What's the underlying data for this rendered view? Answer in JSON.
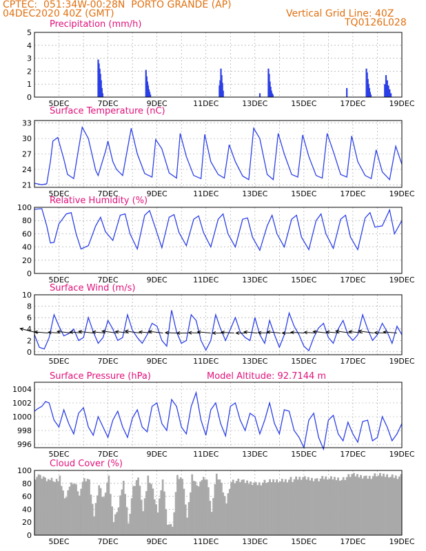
{
  "header": {
    "line1": "CPTEC:  051:34W-00:28N  PORTO GRANDE (AP)",
    "line2": "04DEC2020 40Z (GMT)",
    "grid_note": "Vertical Grid Line: 40Z",
    "code": "TQ0126L028"
  },
  "colors": {
    "header": "#e07010",
    "title": "#e0107a",
    "line": "#2b3fe6",
    "cloud": "#a9a9a9",
    "grid": "#9a9a9a"
  },
  "x_axis_labels": [
    "5DEC",
    "7DEC",
    "9DEC",
    "11DEC",
    "13DEC",
    "15DEC",
    "17DEC",
    "19DEC"
  ],
  "chart_data": [
    {
      "id": "precip",
      "type": "bar",
      "title": "Precipitation (mm/h)",
      "ylim": [
        0,
        5
      ],
      "yticks": [
        0,
        1,
        2,
        3,
        4,
        5
      ],
      "grid": true,
      "day_range": [
        4.0,
        19.0
      ],
      "days": [
        6.6,
        6.63,
        6.66,
        6.69,
        6.72,
        6.75,
        6.78,
        8.55,
        8.58,
        8.61,
        8.64,
        8.67,
        8.7,
        8.73,
        11.55,
        11.58,
        11.61,
        11.64,
        11.67,
        11.7,
        13.55,
        13.58,
        13.61,
        13.64,
        13.67,
        13.7,
        13.73,
        13.2,
        16.75,
        17.55,
        17.58,
        17.61,
        17.64,
        17.67,
        17.7,
        17.73,
        18.3,
        18.35,
        18.4,
        18.45,
        18.5,
        18.55
      ],
      "values": [
        2.9,
        2.6,
        2.2,
        1.8,
        1.3,
        0.7,
        0.3,
        2.1,
        1.6,
        1.2,
        0.9,
        0.6,
        0.4,
        0.2,
        0.9,
        1.3,
        2.2,
        1.7,
        1.1,
        0.5,
        2.2,
        1.8,
        1.2,
        0.8,
        0.5,
        0.3,
        0.2,
        0.3,
        0.7,
        2.2,
        1.9,
        1.4,
        1.0,
        0.7,
        0.4,
        0.2,
        1.0,
        1.7,
        1.3,
        0.9,
        0.6,
        0.3
      ]
    },
    {
      "id": "temp",
      "type": "line",
      "title": "Surface Temperature (nC)",
      "ylim": [
        20.5,
        33.5
      ],
      "yticks": [
        21,
        24,
        27,
        30,
        33
      ],
      "grid": true,
      "day_range": [
        4.0,
        19.0
      ],
      "days": [
        4.0,
        4.3,
        4.5,
        4.65,
        4.75,
        4.95,
        5.2,
        5.35,
        5.6,
        5.8,
        5.95,
        6.2,
        6.5,
        6.6,
        6.9,
        7.0,
        7.2,
        7.35,
        7.6,
        7.95,
        8.2,
        8.5,
        8.8,
        8.95,
        9.2,
        9.5,
        9.8,
        9.95,
        10.2,
        10.5,
        10.8,
        10.95,
        11.2,
        11.5,
        11.75,
        11.95,
        12.2,
        12.5,
        12.75,
        12.95,
        13.2,
        13.5,
        13.75,
        13.95,
        14.2,
        14.5,
        14.75,
        14.95,
        15.2,
        15.5,
        15.75,
        15.95,
        16.2,
        16.5,
        16.75,
        16.95,
        17.2,
        17.5,
        17.75,
        17.95,
        18.2,
        18.5,
        18.75,
        19.0
      ],
      "values": [
        21.3,
        21.0,
        21.2,
        25.5,
        29.5,
        30.2,
        26.0,
        23.0,
        22.2,
        28.0,
        32.2,
        30.0,
        23.8,
        22.8,
        27.5,
        29.5,
        25.5,
        24.0,
        22.8,
        32.0,
        27.0,
        23.2,
        22.5,
        29.8,
        28.0,
        23.3,
        22.3,
        31.0,
        26.5,
        22.8,
        22.2,
        30.8,
        25.5,
        23.0,
        22.3,
        28.8,
        25.5,
        22.7,
        22.0,
        32.0,
        30.0,
        23.0,
        22.0,
        31.0,
        27.0,
        23.0,
        22.5,
        30.7,
        26.5,
        22.8,
        22.3,
        31.0,
        27.5,
        23.0,
        22.5,
        30.5,
        25.5,
        22.8,
        22.2,
        27.8,
        23.5,
        22.0,
        28.5,
        25.0
      ]
    },
    {
      "id": "rh",
      "type": "line",
      "title": "Relative Humidity (%)",
      "ylim": [
        0,
        100
      ],
      "yticks": [
        0,
        20,
        40,
        60,
        80,
        100
      ],
      "grid": true,
      "day_range": [
        4.0,
        19.0
      ],
      "days": [
        4.0,
        4.3,
        4.5,
        4.65,
        4.8,
        5.0,
        5.3,
        5.5,
        5.7,
        5.9,
        6.2,
        6.5,
        6.7,
        6.9,
        7.2,
        7.5,
        7.7,
        7.9,
        8.2,
        8.5,
        8.7,
        8.9,
        9.2,
        9.5,
        9.7,
        9.9,
        10.2,
        10.5,
        10.7,
        10.9,
        11.2,
        11.5,
        11.7,
        11.9,
        12.2,
        12.5,
        12.7,
        12.9,
        13.2,
        13.5,
        13.7,
        13.9,
        14.2,
        14.5,
        14.7,
        14.9,
        15.2,
        15.5,
        15.7,
        15.9,
        16.2,
        16.5,
        16.7,
        16.9,
        17.2,
        17.5,
        17.7,
        17.9,
        18.2,
        18.5,
        18.7,
        19.0
      ],
      "values": [
        97,
        98,
        72,
        46,
        47,
        75,
        90,
        92,
        60,
        37,
        42,
        72,
        85,
        63,
        50,
        88,
        90,
        60,
        37,
        88,
        95,
        73,
        39,
        85,
        89,
        62,
        42,
        82,
        87,
        62,
        40,
        82,
        90,
        60,
        40,
        82,
        84,
        55,
        35,
        72,
        88,
        60,
        40,
        82,
        88,
        55,
        36,
        80,
        90,
        60,
        38,
        82,
        88,
        55,
        36,
        84,
        92,
        70,
        72,
        96,
        60,
        80
      ]
    },
    {
      "id": "wind",
      "type": "line",
      "title": "Surface Wind (m/s)",
      "ylim": [
        -0.5,
        10
      ],
      "yticks": [
        0,
        2,
        4,
        6,
        8,
        10
      ],
      "grid": true,
      "day_range": [
        4.0,
        19.0
      ],
      "days": [
        4.0,
        4.2,
        4.4,
        4.6,
        4.8,
        5.0,
        5.2,
        5.4,
        5.6,
        5.8,
        6.0,
        6.2,
        6.4,
        6.6,
        6.8,
        7.0,
        7.2,
        7.4,
        7.6,
        7.8,
        8.0,
        8.2,
        8.4,
        8.6,
        8.8,
        9.0,
        9.2,
        9.4,
        9.6,
        9.8,
        10.0,
        10.2,
        10.4,
        10.6,
        10.8,
        11.0,
        11.2,
        11.4,
        11.6,
        11.8,
        12.0,
        12.2,
        12.4,
        12.6,
        12.8,
        13.0,
        13.2,
        13.4,
        13.6,
        13.8,
        14.0,
        14.2,
        14.4,
        14.6,
        14.8,
        15.0,
        15.2,
        15.4,
        15.6,
        15.8,
        16.0,
        16.2,
        16.4,
        16.6,
        16.8,
        17.0,
        17.2,
        17.4,
        17.6,
        17.8,
        18.0,
        18.2,
        18.4,
        18.6,
        18.8,
        19.0
      ],
      "values": [
        3.0,
        0.8,
        0.5,
        2.5,
        6.5,
        4.5,
        2.8,
        3.2,
        4.0,
        2.0,
        2.5,
        6.0,
        3.5,
        1.5,
        2.5,
        5.5,
        4.0,
        2.0,
        2.5,
        6.5,
        3.8,
        2.5,
        1.5,
        3.0,
        5.0,
        4.5,
        2.0,
        1.0,
        7.3,
        3.5,
        1.5,
        2.0,
        6.5,
        5.5,
        2.0,
        0.3,
        2.0,
        6.5,
        4.0,
        2.0,
        4.0,
        6.0,
        3.5,
        2.5,
        2.0,
        6.0,
        3.0,
        1.5,
        5.5,
        3.0,
        0.8,
        3.0,
        6.8,
        4.5,
        3.0,
        1.0,
        0.2,
        2.5,
        4.2,
        5.0,
        2.5,
        1.5,
        4.0,
        5.5,
        3.0,
        2.0,
        3.0,
        6.5,
        4.0,
        2.0,
        3.0,
        5.0,
        3.5,
        1.5,
        4.5,
        3.0
      ],
      "arrow_days": [
        4.15,
        4.55,
        5.05,
        5.5,
        5.95,
        6.4,
        6.9,
        7.35,
        7.85,
        8.3,
        8.8,
        9.25,
        9.8,
        10.25,
        10.75,
        11.2,
        11.7,
        12.15,
        12.65,
        13.1,
        13.6,
        14.05,
        14.55,
        15.0,
        15.5,
        15.95,
        16.45,
        16.9,
        17.4,
        17.85,
        18.35,
        18.8
      ],
      "arrow_speeds": [
        4.6,
        3.6,
        3.2,
        3.5,
        3.0,
        3.8,
        3.3,
        3.5,
        3.2,
        3.6,
        3.3,
        3.7,
        3.2,
        3.4,
        3.2,
        3.5,
        3.3,
        3.6,
        3.2,
        3.5,
        3.3,
        3.6,
        3.4,
        3.7,
        3.2,
        3.5,
        3.4,
        3.6,
        3.4,
        3.8,
        3.3,
        3.6
      ],
      "arrow_dirs": [
        90,
        60,
        55,
        65,
        60,
        65,
        60,
        70,
        65,
        70,
        60,
        65,
        50,
        45,
        50,
        60,
        45,
        55,
        45,
        60,
        50,
        60,
        45,
        55,
        55,
        65,
        60,
        70,
        65,
        70,
        50,
        60
      ]
    },
    {
      "id": "press",
      "type": "line",
      "title": "Surface Pressure (hPa)",
      "subtitle": "Model Altitude: 92.7144 m",
      "ylim": [
        995.5,
        1005
      ],
      "yticks": [
        996,
        998,
        1000,
        1002,
        1004
      ],
      "grid": true,
      "day_range": [
        4.0,
        19.0
      ],
      "days": [
        4.0,
        4.15,
        4.3,
        4.45,
        4.6,
        4.8,
        5.0,
        5.2,
        5.4,
        5.6,
        5.8,
        6.0,
        6.2,
        6.4,
        6.6,
        6.8,
        7.0,
        7.2,
        7.4,
        7.6,
        7.8,
        8.0,
        8.2,
        8.4,
        8.6,
        8.8,
        9.0,
        9.2,
        9.4,
        9.6,
        9.8,
        10.0,
        10.2,
        10.4,
        10.6,
        10.8,
        11.0,
        11.2,
        11.4,
        11.6,
        11.8,
        12.0,
        12.2,
        12.4,
        12.6,
        12.8,
        13.0,
        13.2,
        13.4,
        13.6,
        13.8,
        14.0,
        14.2,
        14.4,
        14.6,
        14.8,
        15.0,
        15.2,
        15.4,
        15.6,
        15.8,
        16.0,
        16.2,
        16.4,
        16.6,
        16.8,
        17.0,
        17.2,
        17.4,
        17.6,
        17.8,
        18.0,
        18.2,
        18.4,
        18.6,
        18.8,
        19.0
      ],
      "values": [
        1000.8,
        1001.2,
        1001.5,
        1002.2,
        1002.0,
        999.5,
        998.5,
        1001.0,
        999.0,
        997.5,
        1000.5,
        1001.3,
        998.5,
        997.3,
        1000.0,
        998.5,
        997.0,
        999.5,
        1000.8,
        998.5,
        997.0,
        999.8,
        1001.0,
        998.5,
        997.8,
        1001.5,
        1002.0,
        999.0,
        998.0,
        1002.5,
        1001.5,
        998.5,
        997.5,
        1001.5,
        1003.5,
        999.5,
        997.3,
        1001.0,
        1002.0,
        999.0,
        997.2,
        1001.5,
        1002.0,
        999.5,
        998.0,
        1000.5,
        1000.0,
        997.5,
        999.5,
        1002.0,
        999.0,
        997.5,
        1001.0,
        1000.8,
        998.0,
        997.0,
        995.5,
        999.5,
        1000.5,
        997.0,
        995.3,
        999.5,
        1000.2,
        997.5,
        996.5,
        999.2,
        997.5,
        996.3,
        999.3,
        999.5,
        996.5,
        997.0,
        1000.0,
        998.5,
        996.5,
        997.5,
        999.0
      ]
    },
    {
      "id": "cloud",
      "type": "area",
      "title": "Cloud Cover (%)",
      "ylim": [
        0,
        100
      ],
      "yticks": [
        0,
        20,
        40,
        60,
        80,
        100
      ],
      "grid": true,
      "day_range": [
        4.0,
        19.0
      ],
      "days": [
        4.0,
        4.2,
        4.4,
        4.6,
        4.8,
        5.0,
        5.2,
        5.4,
        5.6,
        5.8,
        6.0,
        6.2,
        6.4,
        6.6,
        6.8,
        7.0,
        7.2,
        7.4,
        7.6,
        7.8,
        8.0,
        8.2,
        8.4,
        8.6,
        8.8,
        9.0,
        9.2,
        9.4,
        9.6,
        9.8,
        10.0,
        10.2,
        10.4,
        10.6,
        10.8,
        11.0,
        11.2,
        11.4,
        11.6,
        11.8,
        12.0,
        12.5,
        13.0,
        13.5,
        14.0,
        14.5,
        15.0,
        15.5,
        16.0,
        16.5,
        17.0,
        17.5,
        18.0,
        18.5,
        19.0
      ],
      "values": [
        90,
        90,
        88,
        86,
        85,
        88,
        55,
        75,
        82,
        65,
        85,
        85,
        30,
        80,
        55,
        90,
        20,
        45,
        88,
        15,
        75,
        90,
        40,
        88,
        70,
        35,
        88,
        20,
        10,
        92,
        88,
        30,
        90,
        75,
        85,
        88,
        40,
        92,
        80,
        50,
        85,
        82,
        80,
        82,
        85,
        86,
        88,
        87,
        88,
        88,
        92,
        90,
        92,
        92,
        90
      ]
    }
  ]
}
